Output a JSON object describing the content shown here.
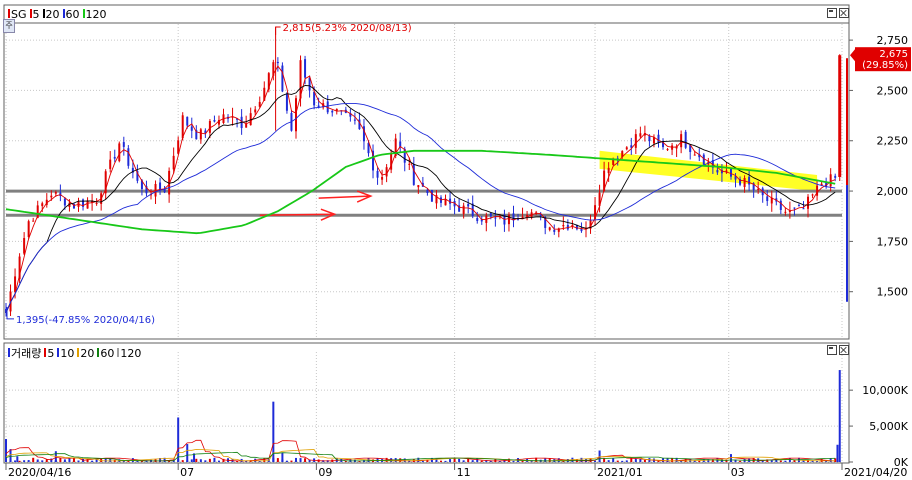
{
  "price_panel": {
    "legend": [
      {
        "label": "SG",
        "color": "#e00000"
      },
      {
        "label": "5",
        "color": "#e00000"
      },
      {
        "label": "20",
        "color": "#000000"
      },
      {
        "label": "60",
        "color": "#1e2bd8"
      },
      {
        "label": "120",
        "color": "#18c818"
      }
    ],
    "corner_button": "주"
  },
  "volume_panel": {
    "legend": [
      {
        "label": "거래량",
        "color": "#1e2bd8"
      },
      {
        "label": "5",
        "color": "#e00000"
      },
      {
        "label": "10",
        "color": "#1e2bd8"
      },
      {
        "label": "20",
        "color": "#e0a000"
      },
      {
        "label": "60",
        "color": "#108010"
      },
      {
        "label": "120",
        "color": "#a0a0a0"
      }
    ]
  },
  "colors": {
    "up": "#e00000",
    "down": "#1e2bd8",
    "ma5": "#e00000",
    "ma20": "#000000",
    "ma60": "#1e2bd8",
    "ma120": "#18c818",
    "highlight": "#ffff00",
    "support_line": "#808080",
    "annotation_arrow": "#ff2020"
  },
  "chart_data": [
    {
      "type": "candlestick",
      "y_ticks": [
        "2,750",
        "2,500",
        "2,250",
        "2,000",
        "1,750",
        "1,500"
      ],
      "y_tick_values": [
        2750,
        2500,
        2250,
        2000,
        1750,
        1500
      ],
      "ylim": [
        1270,
        2830
      ],
      "x_labels": [
        "2020/04/16",
        "07",
        "09",
        "11",
        "2021/01",
        "03",
        "2021/04/20"
      ],
      "x_label_days": [
        0,
        76,
        137,
        198,
        260,
        319,
        369
      ],
      "x_range_days": [
        0,
        369
      ],
      "high_annotation": {
        "text": "2,815(5.23% 2020/08/13)",
        "value": 2815,
        "day": 119
      },
      "low_annotation": {
        "text": "1,395(-47.85% 2020/04/16)",
        "value": 1395,
        "day": 0
      },
      "current_price": {
        "value": 2675,
        "label": "2,675",
        "change": "29.85%"
      },
      "horizontal_lines": [
        2000,
        1880
      ],
      "highlight_band": {
        "from_day": 262,
        "to_day": 358,
        "top_start": 2200,
        "top_end": 2080,
        "bottom_start": 2110,
        "bottom_end": 2000
      },
      "last_candle": {
        "open": 2070,
        "high": 2680,
        "low": 2050,
        "close": 2675
      },
      "price_waypoints": [
        [
          0,
          1395
        ],
        [
          5,
          1650
        ],
        [
          10,
          1850
        ],
        [
          20,
          1990
        ],
        [
          30,
          1930
        ],
        [
          40,
          1960
        ],
        [
          50,
          2240
        ],
        [
          60,
          2000
        ],
        [
          70,
          2010
        ],
        [
          78,
          2360
        ],
        [
          85,
          2270
        ],
        [
          95,
          2380
        ],
        [
          105,
          2330
        ],
        [
          113,
          2490
        ],
        [
          119,
          2660
        ],
        [
          126,
          2300
        ],
        [
          130,
          2630
        ],
        [
          136,
          2440
        ],
        [
          145,
          2400
        ],
        [
          155,
          2320
        ],
        [
          165,
          2050
        ],
        [
          172,
          2250
        ],
        [
          180,
          2060
        ],
        [
          190,
          1950
        ],
        [
          200,
          1920
        ],
        [
          210,
          1870
        ],
        [
          220,
          1850
        ],
        [
          230,
          1910
        ],
        [
          240,
          1820
        ],
        [
          250,
          1840
        ],
        [
          256,
          1800
        ],
        [
          260,
          1950
        ],
        [
          265,
          2130
        ],
        [
          272,
          2200
        ],
        [
          280,
          2290
        ],
        [
          290,
          2210
        ],
        [
          298,
          2260
        ],
        [
          305,
          2190
        ],
        [
          315,
          2090
        ],
        [
          325,
          2050
        ],
        [
          335,
          1960
        ],
        [
          345,
          1890
        ],
        [
          352,
          1910
        ],
        [
          360,
          2040
        ],
        [
          368,
          2070
        ]
      ],
      "ma120_waypoints": [
        [
          0,
          1910
        ],
        [
          30,
          1860
        ],
        [
          60,
          1810
        ],
        [
          85,
          1790
        ],
        [
          105,
          1830
        ],
        [
          120,
          1900
        ],
        [
          135,
          2000
        ],
        [
          150,
          2120
        ],
        [
          165,
          2180
        ],
        [
          180,
          2200
        ],
        [
          210,
          2200
        ],
        [
          240,
          2180
        ],
        [
          265,
          2160
        ],
        [
          290,
          2140
        ],
        [
          315,
          2120
        ],
        [
          340,
          2090
        ],
        [
          369,
          2030
        ]
      ],
      "volume": {
        "y_ticks": [
          "10,000K",
          "5,000K",
          "0K"
        ],
        "y_tick_values": [
          10000,
          5000,
          0
        ],
        "ylim": [
          0,
          14200
        ],
        "spikes": [
          [
            0,
            3200
          ],
          [
            2,
            1800
          ],
          [
            5,
            800
          ],
          [
            22,
            1500
          ],
          [
            76,
            6200
          ],
          [
            80,
            2500
          ],
          [
            83,
            1200
          ],
          [
            118,
            8400
          ],
          [
            122,
            1300
          ],
          [
            262,
            1600
          ],
          [
            320,
            1100
          ],
          [
            368,
            12800
          ],
          [
            367,
            2400
          ]
        ]
      }
    }
  ]
}
